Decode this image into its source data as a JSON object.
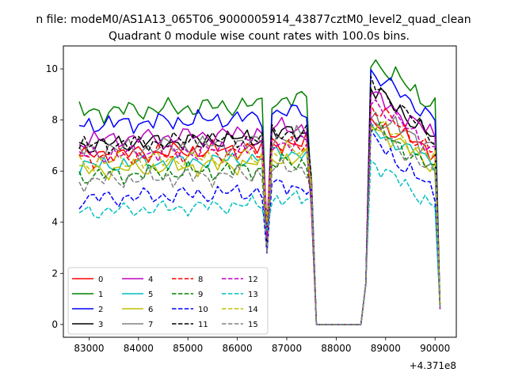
{
  "chart_data": {
    "type": "line",
    "suptitle": "n file: modeM0/AS1A13_065T06_9000005914_43877cztM0_level2_quad_clean",
    "title": "Quadrant 0 module wise count rates with 100.0s bins.",
    "xlabel": "",
    "ylabel": "",
    "x_offset_label": "+4.371e8",
    "xlim": [
      82480,
      90430
    ],
    "ylim": [
      -0.5,
      10.9
    ],
    "x_ticks": [
      83000,
      84000,
      85000,
      86000,
      87000,
      88000,
      89000,
      90000
    ],
    "x_tick_labels": [
      "83000",
      "84000",
      "85000",
      "86000",
      "87000",
      "88000",
      "89000",
      "90000"
    ],
    "y_ticks": [
      0,
      2,
      4,
      6,
      8,
      10
    ],
    "y_tick_labels": [
      "0",
      "2",
      "4",
      "6",
      "8",
      "10"
    ],
    "legend_loc": "lower left",
    "legend_columns": 4,
    "series": [
      {
        "name": "0",
        "color": "#ff0000",
        "dash": "solid",
        "base": 6.6,
        "amp": 0.4,
        "peak": 8.0
      },
      {
        "name": "1",
        "color": "#008000",
        "dash": "solid",
        "base": 8.3,
        "amp": 0.45,
        "peak": 10.4
      },
      {
        "name": "2",
        "color": "#0000ff",
        "dash": "solid",
        "base": 7.8,
        "amp": 0.4,
        "peak": 9.9
      },
      {
        "name": "3",
        "color": "#000000",
        "dash": "solid",
        "base": 7.0,
        "amp": 0.4,
        "peak": 9.3
      },
      {
        "name": "4",
        "color": "#bf00bf",
        "dash": "solid",
        "base": 7.2,
        "amp": 0.4,
        "peak": 9.0
      },
      {
        "name": "5",
        "color": "#00bfbf",
        "dash": "solid",
        "base": 6.2,
        "amp": 0.35,
        "peak": 7.6
      },
      {
        "name": "6",
        "color": "#bfbf00",
        "dash": "solid",
        "base": 6.0,
        "amp": 0.4,
        "peak": 7.8
      },
      {
        "name": "7",
        "color": "#808080",
        "dash": "solid",
        "base": 6.8,
        "amp": 0.45,
        "peak": 8.2
      },
      {
        "name": "8",
        "color": "#ff0000",
        "dash": "dashed",
        "base": 6.5,
        "amp": 0.4,
        "peak": 8.6
      },
      {
        "name": "9",
        "color": "#008000",
        "dash": "dashed",
        "base": 5.8,
        "amp": 0.4,
        "peak": 7.8
      },
      {
        "name": "10",
        "color": "#0000ff",
        "dash": "dashed",
        "base": 4.9,
        "amp": 0.4,
        "peak": 7.3
      },
      {
        "name": "11",
        "color": "#000000",
        "dash": "dashed",
        "base": 7.0,
        "amp": 0.4,
        "peak": 9.5
      },
      {
        "name": "12",
        "color": "#bf00bf",
        "dash": "dashed",
        "base": 6.6,
        "amp": 0.4,
        "peak": 8.8
      },
      {
        "name": "13",
        "color": "#00bfbf",
        "dash": "dashed",
        "base": 4.4,
        "amp": 0.35,
        "peak": 6.4
      },
      {
        "name": "14",
        "color": "#bfbf00",
        "dash": "dashed",
        "base": 6.3,
        "amp": 0.4,
        "peak": 8.0
      },
      {
        "name": "15",
        "color": "#808080",
        "dash": "dashed",
        "base": 5.6,
        "amp": 0.4,
        "peak": 7.8
      }
    ],
    "time_segments": [
      {
        "x_start": 82800,
        "x_end": 86500,
        "level": "base"
      },
      {
        "x": 86600,
        "value": 3.2
      },
      {
        "x_start": 86700,
        "x_end": 87400,
        "level": "base_plus_0.5"
      },
      {
        "x_start": 87600,
        "x_end": 88500,
        "value": 0.0
      },
      {
        "x_start": 88700,
        "x_end": 90000,
        "level": "peak"
      },
      {
        "x": 90100,
        "value": 0.8
      }
    ]
  }
}
